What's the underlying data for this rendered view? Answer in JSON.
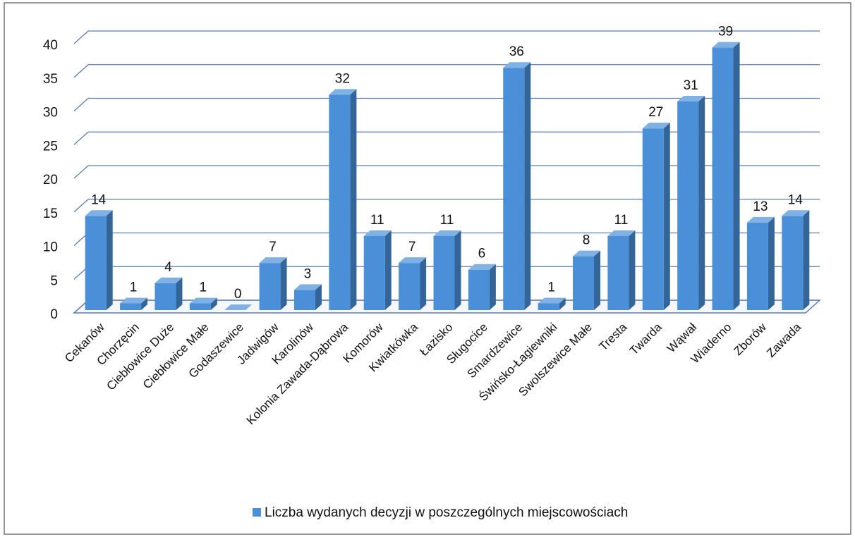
{
  "chart_data": {
    "type": "bar3d",
    "categories": [
      "Cekanów",
      "Chorzęcin",
      "Ciebłowice Duże",
      "Ciebłowice Małe",
      "Godaszewice",
      "Jadwigów",
      "Karolinów",
      "Kolonia Zawada-Dąbrowa",
      "Komorów",
      "Kwiatkówka",
      "Łazisko",
      "Sługocice",
      "Smardzewice",
      "Świńsko-Łagiewniki",
      "Swolszewice Małe",
      "Tresta",
      "Twarda",
      "Wąwał",
      "Wiaderno",
      "Zborów",
      "Zawada"
    ],
    "series": [
      {
        "name": "Liczba wydanych decyzji w poszczególnych miejscowościach",
        "color": "#4a90d9",
        "values": [
          14,
          1,
          4,
          1,
          0,
          7,
          3,
          32,
          11,
          7,
          11,
          6,
          36,
          1,
          8,
          11,
          27,
          31,
          39,
          13,
          14
        ]
      }
    ],
    "ylim": [
      0,
      40
    ],
    "yticks": [
      0,
      5,
      10,
      15,
      20,
      25,
      30,
      35,
      40
    ],
    "grid": true,
    "legend": "bottom"
  }
}
